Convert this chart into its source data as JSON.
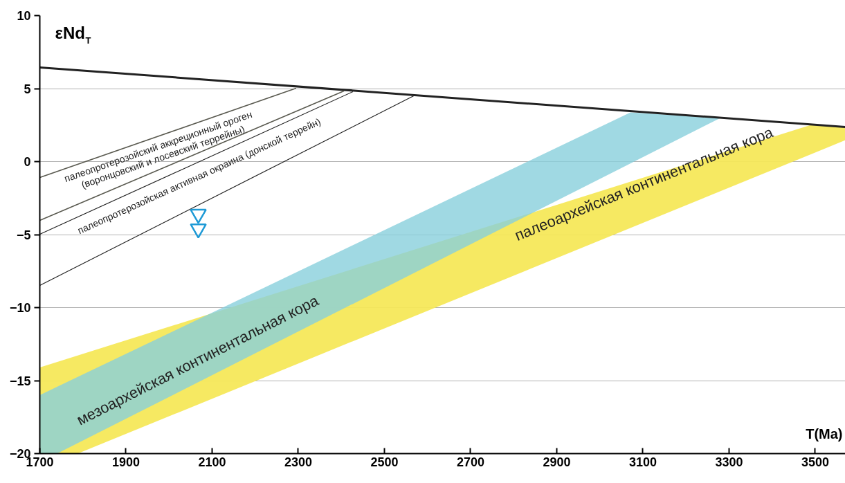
{
  "chart_data": {
    "type": "line",
    "xlabel": "T(Ma)",
    "ylabel": "εNd$_{T}$",
    "xlim": [
      1700,
      3570
    ],
    "ylim": [
      -20,
      10
    ],
    "xticks": [
      1700,
      1900,
      2100,
      2300,
      2500,
      2700,
      2900,
      3100,
      3300,
      3500
    ],
    "yticks": [
      -20,
      -15,
      -10,
      -5,
      0,
      5,
      10
    ],
    "grid": "y",
    "series": [
      {
        "color": "#f5e85a",
        "x": [
          1700,
          1788,
          3489,
          3570
        ],
        "values": [
          null,
          null,
          null,
          null
        ],
        "lower": [
          -20,
          -20,
          0.49,
          1.47
        ],
        "upper": [
          -14.1,
          -13.28,
          2.5,
          2.37
        ]
      },
      {
        "color": "#88d0dc",
        "x": [
          1700,
          1740,
          3071,
          3280
        ],
        "values": [
          null,
          null,
          null,
          null
        ],
        "lower": [
          -20,
          -20,
          -0.13,
          2.99
        ],
        "upper": [
          -16,
          -15.43,
          3.37,
          2.99
        ]
      },
      {
        "color": "#222222",
        "x": [
          1700,
          3570
        ],
        "values": [
          6.45,
          2.37
        ]
      },
      {
        "color": "#5a5a50",
        "x": [
          1700,
          2295
        ],
        "values": [
          -1.09,
          5.02
        ]
      },
      {
        "color": "#5a5a50",
        "x": [
          1700,
          2406
        ],
        "values": [
          -4.03,
          4.83
        ]
      },
      {
        "color": "#222222",
        "x": [
          1700,
          2427
        ],
        "values": [
          -4.98,
          4.79
        ]
      },
      {
        "color": "#222222",
        "x": [
          1700,
          2568
        ],
        "values": [
          -8.48,
          4.5
        ]
      },
      {
        "type": "scatter",
        "color": "#1e9ad6",
        "marker": "triangle",
        "x": [
          2068,
          2068
        ],
        "values": [
          -3.6,
          -4.6
        ]
      }
    ],
    "annotations": [
      "палеопротерозойский аккреционный ороген",
      "(воронцовский и лосевский террейны)",
      "палеопротерозойская  активная окраина (донской террейн)",
      "мезоархейская континентальная кора",
      "палеоархейская континентальная кора"
    ]
  }
}
